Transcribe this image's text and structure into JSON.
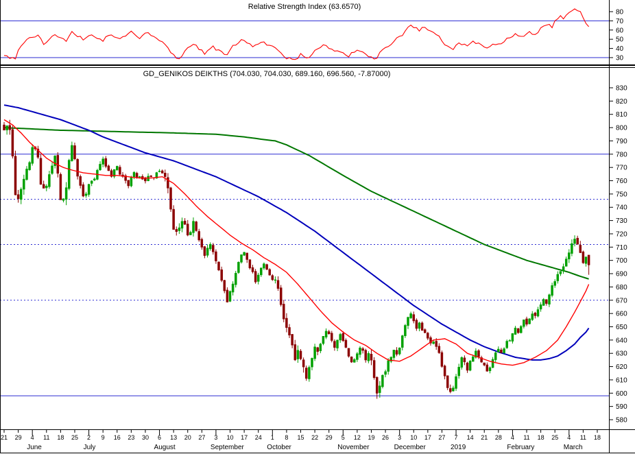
{
  "app": {
    "background": "#ffffff"
  },
  "rsi_panel": {
    "title": "Relative Strength Index (63.6570)",
    "line_color": "#ff0000",
    "level_color": "#2a2ad2",
    "axis_ticks": [
      80,
      70,
      60,
      50,
      40,
      30
    ],
    "levels": [
      {
        "value": 70,
        "style": "solid"
      },
      {
        "value": 30,
        "style": "solid"
      }
    ]
  },
  "price_panel": {
    "title": "GD_GENIKOS DEIKTHS (704.030, 704.030, 689.160, 696.560, -7.87000)",
    "axis_ticks": [
      830,
      820,
      810,
      800,
      790,
      780,
      770,
      760,
      750,
      740,
      730,
      720,
      710,
      700,
      690,
      680,
      670,
      660,
      650,
      640,
      630,
      620,
      610,
      600,
      590,
      580
    ],
    "levels": [
      {
        "value": 780,
        "style": "solid"
      },
      {
        "value": 746,
        "style": "dashed"
      },
      {
        "value": 712,
        "style": "dashed"
      },
      {
        "value": 670,
        "style": "dashed"
      },
      {
        "value": 598,
        "style": "solid"
      }
    ],
    "colors": {
      "up": "#00a000",
      "down": "#8b0000",
      "ma_short": "#ff0000",
      "ma_mid": "#0000bb",
      "ma_long": "#007700",
      "level": "#2a2ad2"
    }
  },
  "x_axis": {
    "week_labels": [
      "21",
      "29",
      "4",
      "11",
      "18",
      "25",
      "2",
      "9",
      "16",
      "23",
      "30",
      "6",
      "13",
      "20",
      "27",
      "3",
      "10",
      "17",
      "24",
      "1",
      "8",
      "15",
      "22",
      "29",
      "5",
      "12",
      "19",
      "26",
      "3",
      "10",
      "17",
      "27",
      "7",
      "14",
      "21",
      "28",
      "4",
      "11",
      "18",
      "25",
      "4",
      "11",
      "18"
    ],
    "month_labels": [
      {
        "label": "June",
        "week": 2
      },
      {
        "label": "July",
        "week": 6
      },
      {
        "label": "August",
        "week": 11
      },
      {
        "label": "September",
        "week": 15
      },
      {
        "label": "October",
        "week": 19
      },
      {
        "label": "November",
        "week": 24
      },
      {
        "label": "December",
        "week": 28
      },
      {
        "label": "2019",
        "week": 32
      },
      {
        "label": "February",
        "week": 36
      },
      {
        "label": "March",
        "week": 40
      }
    ]
  },
  "chart_data": {
    "type": "candlestick",
    "instrument": "GD_GENIKOS DEIKTHS",
    "rsi_value": 63.657,
    "last_candle": {
      "open": 704.03,
      "high": 704.03,
      "low": 689.16,
      "close": 696.56,
      "change": -7.87
    },
    "price_axis": {
      "min": 580,
      "max": 830,
      "step": 10
    },
    "rsi_axis": {
      "min": 30,
      "max": 80,
      "overbought": 70,
      "oversold": 30
    },
    "daily_closes": [
      796,
      800,
      799,
      778,
      748,
      745,
      752,
      760,
      768,
      775,
      783,
      786,
      778,
      757,
      752,
      758,
      765,
      772,
      776,
      768,
      748,
      744,
      752,
      774,
      784,
      776,
      765,
      755,
      750,
      752,
      756,
      760,
      763,
      768,
      772,
      778,
      772,
      768,
      764,
      767,
      770,
      766,
      763,
      760,
      757,
      762,
      766,
      764,
      762,
      761,
      760,
      762,
      763,
      764,
      765,
      766,
      766,
      762,
      752,
      738,
      724,
      720,
      726,
      731,
      726,
      718,
      722,
      728,
      724,
      716,
      710,
      703,
      708,
      712,
      707,
      700,
      694,
      686,
      676,
      670,
      676,
      683,
      690,
      697,
      703,
      706,
      700,
      694,
      690,
      685,
      688,
      693,
      697,
      694,
      690,
      687,
      684,
      680,
      668,
      658,
      650,
      642,
      634,
      628,
      632,
      626,
      618,
      613,
      620,
      628,
      634,
      630,
      636,
      642,
      646,
      643,
      638,
      634,
      640,
      644,
      641,
      635,
      628,
      622,
      626,
      630,
      634,
      630,
      626,
      630,
      626,
      610,
      597,
      604,
      612,
      618,
      624,
      628,
      632,
      628,
      634,
      642,
      650,
      656,
      660,
      655,
      650,
      653,
      648,
      644,
      640,
      636,
      640,
      636,
      630,
      622,
      612,
      604,
      599,
      606,
      614,
      620,
      626,
      622,
      618,
      624,
      628,
      632,
      628,
      624,
      620,
      616,
      620,
      626,
      630,
      634,
      630,
      634,
      638,
      641,
      645,
      648,
      645,
      650,
      654,
      652,
      656,
      660,
      658,
      662,
      666,
      670,
      668,
      674,
      680,
      684,
      688,
      692,
      696,
      700,
      706,
      714,
      718,
      712,
      706,
      700,
      704,
      697
    ],
    "volatility_anchors": [
      [
        0,
        5
      ],
      [
        4,
        7
      ],
      [
        10,
        5
      ],
      [
        20,
        7
      ],
      [
        25,
        6
      ],
      [
        30,
        4
      ],
      [
        40,
        3.5
      ],
      [
        50,
        3
      ],
      [
        57,
        6
      ],
      [
        62,
        5
      ],
      [
        70,
        4
      ],
      [
        76,
        4
      ],
      [
        84,
        4
      ],
      [
        92,
        3
      ],
      [
        97,
        5
      ],
      [
        102,
        7
      ],
      [
        107,
        6
      ],
      [
        112,
        4
      ],
      [
        118,
        4
      ],
      [
        124,
        4
      ],
      [
        130,
        6
      ],
      [
        132,
        7
      ],
      [
        136,
        4
      ],
      [
        142,
        4
      ],
      [
        148,
        3.5
      ],
      [
        154,
        4
      ],
      [
        157,
        5
      ],
      [
        162,
        4
      ],
      [
        168,
        3
      ],
      [
        174,
        3
      ],
      [
        180,
        3
      ],
      [
        186,
        3
      ],
      [
        192,
        3
      ],
      [
        197,
        3.5
      ],
      [
        200,
        5
      ],
      [
        203,
        5
      ],
      [
        206,
        4
      ]
    ],
    "rsi_anchors": [
      [
        0,
        33
      ],
      [
        2,
        29
      ],
      [
        4,
        30
      ],
      [
        6,
        44
      ],
      [
        8,
        50
      ],
      [
        12,
        55
      ],
      [
        14,
        45
      ],
      [
        18,
        55
      ],
      [
        22,
        48
      ],
      [
        24,
        57
      ],
      [
        28,
        50
      ],
      [
        31,
        55
      ],
      [
        35,
        48
      ],
      [
        37,
        55
      ],
      [
        41,
        50
      ],
      [
        45,
        58
      ],
      [
        48,
        52
      ],
      [
        51,
        57
      ],
      [
        54,
        50
      ],
      [
        57,
        45
      ],
      [
        59,
        35
      ],
      [
        62,
        28
      ],
      [
        64,
        38
      ],
      [
        67,
        45
      ],
      [
        69,
        40
      ],
      [
        71,
        35
      ],
      [
        74,
        42
      ],
      [
        76,
        37
      ],
      [
        79,
        33
      ],
      [
        81,
        42
      ],
      [
        84,
        50
      ],
      [
        86,
        46
      ],
      [
        88,
        42
      ],
      [
        91,
        48
      ],
      [
        93,
        44
      ],
      [
        96,
        40
      ],
      [
        98,
        34
      ],
      [
        100,
        30
      ],
      [
        103,
        27
      ],
      [
        105,
        33
      ],
      [
        108,
        30
      ],
      [
        110,
        38
      ],
      [
        113,
        44
      ],
      [
        115,
        41
      ],
      [
        117,
        37
      ],
      [
        120,
        35
      ],
      [
        122,
        32
      ],
      [
        125,
        38
      ],
      [
        127,
        35
      ],
      [
        130,
        30
      ],
      [
        132,
        28
      ],
      [
        133,
        35
      ],
      [
        136,
        42
      ],
      [
        138,
        48
      ],
      [
        141,
        55
      ],
      [
        143,
        62
      ],
      [
        144,
        66
      ],
      [
        147,
        60
      ],
      [
        149,
        63
      ],
      [
        151,
        58
      ],
      [
        154,
        52
      ],
      [
        156,
        45
      ],
      [
        159,
        40
      ],
      [
        161,
        46
      ],
      [
        164,
        43
      ],
      [
        166,
        48
      ],
      [
        168,
        45
      ],
      [
        171,
        41
      ],
      [
        173,
        46
      ],
      [
        176,
        44
      ],
      [
        178,
        50
      ],
      [
        181,
        55
      ],
      [
        183,
        52
      ],
      [
        186,
        58
      ],
      [
        188,
        55
      ],
      [
        190,
        62
      ],
      [
        193,
        67
      ],
      [
        194,
        63
      ],
      [
        195,
        70
      ],
      [
        197,
        75
      ],
      [
        198,
        72
      ],
      [
        200,
        78
      ],
      [
        202,
        83
      ],
      [
        204,
        79
      ],
      [
        205,
        74
      ],
      [
        206,
        68
      ],
      [
        207,
        64
      ]
    ],
    "ma_long_anchors": [
      [
        0,
        800
      ],
      [
        20,
        798
      ],
      [
        40,
        797
      ],
      [
        60,
        796
      ],
      [
        75,
        795
      ],
      [
        85,
        793
      ],
      [
        92,
        791
      ],
      [
        96,
        790
      ],
      [
        100,
        787
      ],
      [
        104,
        783
      ],
      [
        108,
        779
      ],
      [
        112,
        774
      ],
      [
        116,
        769
      ],
      [
        120,
        764
      ],
      [
        125,
        758
      ],
      [
        130,
        752
      ],
      [
        135,
        747
      ],
      [
        140,
        742
      ],
      [
        145,
        737
      ],
      [
        150,
        732
      ],
      [
        155,
        727
      ],
      [
        160,
        722
      ],
      [
        165,
        717
      ],
      [
        170,
        712
      ],
      [
        175,
        708
      ],
      [
        180,
        704
      ],
      [
        185,
        700
      ],
      [
        190,
        697
      ],
      [
        195,
        694
      ],
      [
        200,
        691
      ],
      [
        204,
        688
      ],
      [
        207,
        686
      ]
    ],
    "ma_mid_anchors": [
      [
        0,
        817
      ],
      [
        5,
        815
      ],
      [
        10,
        812
      ],
      [
        15,
        809
      ],
      [
        20,
        806
      ],
      [
        25,
        802
      ],
      [
        30,
        798
      ],
      [
        35,
        793
      ],
      [
        40,
        789
      ],
      [
        45,
        785
      ],
      [
        50,
        781
      ],
      [
        55,
        778
      ],
      [
        60,
        775
      ],
      [
        65,
        771
      ],
      [
        70,
        767
      ],
      [
        75,
        763
      ],
      [
        80,
        758
      ],
      [
        85,
        753
      ],
      [
        90,
        748
      ],
      [
        95,
        742
      ],
      [
        100,
        736
      ],
      [
        105,
        729
      ],
      [
        110,
        722
      ],
      [
        115,
        714
      ],
      [
        120,
        706
      ],
      [
        125,
        698
      ],
      [
        130,
        690
      ],
      [
        135,
        682
      ],
      [
        140,
        674
      ],
      [
        145,
        666
      ],
      [
        150,
        659
      ],
      [
        155,
        652
      ],
      [
        160,
        646
      ],
      [
        165,
        640
      ],
      [
        170,
        635
      ],
      [
        175,
        631
      ],
      [
        178,
        629
      ],
      [
        181,
        627
      ],
      [
        184,
        626
      ],
      [
        187,
        625
      ],
      [
        190,
        625
      ],
      [
        193,
        626
      ],
      [
        196,
        628
      ],
      [
        199,
        632
      ],
      [
        202,
        637
      ],
      [
        204,
        642
      ],
      [
        206,
        646
      ],
      [
        207,
        649
      ]
    ],
    "ma_short_anchors": [
      [
        0,
        806
      ],
      [
        3,
        802
      ],
      [
        6,
        796
      ],
      [
        9,
        789
      ],
      [
        12,
        783
      ],
      [
        15,
        777
      ],
      [
        18,
        773
      ],
      [
        21,
        770
      ],
      [
        24,
        768
      ],
      [
        28,
        766
      ],
      [
        32,
        765
      ],
      [
        36,
        764
      ],
      [
        40,
        764
      ],
      [
        44,
        763
      ],
      [
        48,
        762
      ],
      [
        52,
        762
      ],
      [
        56,
        763
      ],
      [
        60,
        758
      ],
      [
        64,
        750
      ],
      [
        68,
        741
      ],
      [
        72,
        733
      ],
      [
        76,
        726
      ],
      [
        80,
        719
      ],
      [
        84,
        713
      ],
      [
        88,
        708
      ],
      [
        92,
        702
      ],
      [
        96,
        697
      ],
      [
        100,
        691
      ],
      [
        104,
        682
      ],
      [
        108,
        672
      ],
      [
        112,
        662
      ],
      [
        116,
        653
      ],
      [
        120,
        646
      ],
      [
        124,
        640
      ],
      [
        128,
        636
      ],
      [
        132,
        630
      ],
      [
        136,
        625
      ],
      [
        140,
        624
      ],
      [
        144,
        628
      ],
      [
        148,
        634
      ],
      [
        152,
        640
      ],
      [
        156,
        641
      ],
      [
        160,
        637
      ],
      [
        164,
        630
      ],
      [
        168,
        627
      ],
      [
        172,
        624
      ],
      [
        176,
        622
      ],
      [
        180,
        621
      ],
      [
        184,
        623
      ],
      [
        188,
        627
      ],
      [
        192,
        632
      ],
      [
        196,
        640
      ],
      [
        199,
        650
      ],
      [
        202,
        661
      ],
      [
        204,
        669
      ],
      [
        206,
        677
      ],
      [
        207,
        682
      ]
    ]
  }
}
